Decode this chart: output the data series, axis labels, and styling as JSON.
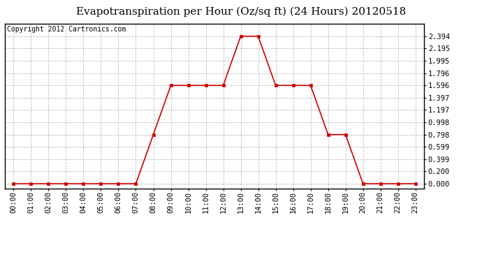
{
  "title": "Evapotranspiration per Hour (Oz/sq ft) (24 Hours) 20120518",
  "copyright": "Copyright 2012 Cartronics.com",
  "hours": [
    0,
    1,
    2,
    3,
    4,
    5,
    6,
    7,
    8,
    9,
    10,
    11,
    12,
    13,
    14,
    15,
    16,
    17,
    18,
    19,
    20,
    21,
    22,
    23
  ],
  "values": [
    0.0,
    0.0,
    0.0,
    0.0,
    0.0,
    0.0,
    0.0,
    0.0,
    0.798,
    1.596,
    1.596,
    1.596,
    1.596,
    2.394,
    2.394,
    1.596,
    1.596,
    1.596,
    0.798,
    0.798,
    0.0,
    0.0,
    0.0,
    0.0
  ],
  "x_labels": [
    "00:00",
    "01:00",
    "02:00",
    "03:00",
    "04:00",
    "05:00",
    "06:00",
    "07:00",
    "08:00",
    "09:00",
    "10:00",
    "11:00",
    "12:00",
    "13:00",
    "14:00",
    "15:00",
    "16:00",
    "17:00",
    "18:00",
    "19:00",
    "20:00",
    "21:00",
    "22:00",
    "23:00"
  ],
  "y_ticks": [
    0.0,
    0.2,
    0.399,
    0.599,
    0.798,
    0.998,
    1.197,
    1.397,
    1.596,
    1.796,
    1.995,
    2.195,
    2.394
  ],
  "y_tick_labels": [
    "0.000",
    "0.200",
    "0.399",
    "0.599",
    "0.798",
    "0.998",
    "1.197",
    "1.397",
    "1.596",
    "1.796",
    "1.995",
    "2.195",
    "2.394"
  ],
  "line_color": "#cc0000",
  "marker_color": "#cc0000",
  "bg_color": "#ffffff",
  "plot_bg_color": "#ffffff",
  "grid_color": "#bbbbbb",
  "title_fontsize": 11,
  "copyright_fontsize": 7,
  "tick_fontsize": 7.5,
  "ylim": [
    -0.08,
    2.6
  ]
}
